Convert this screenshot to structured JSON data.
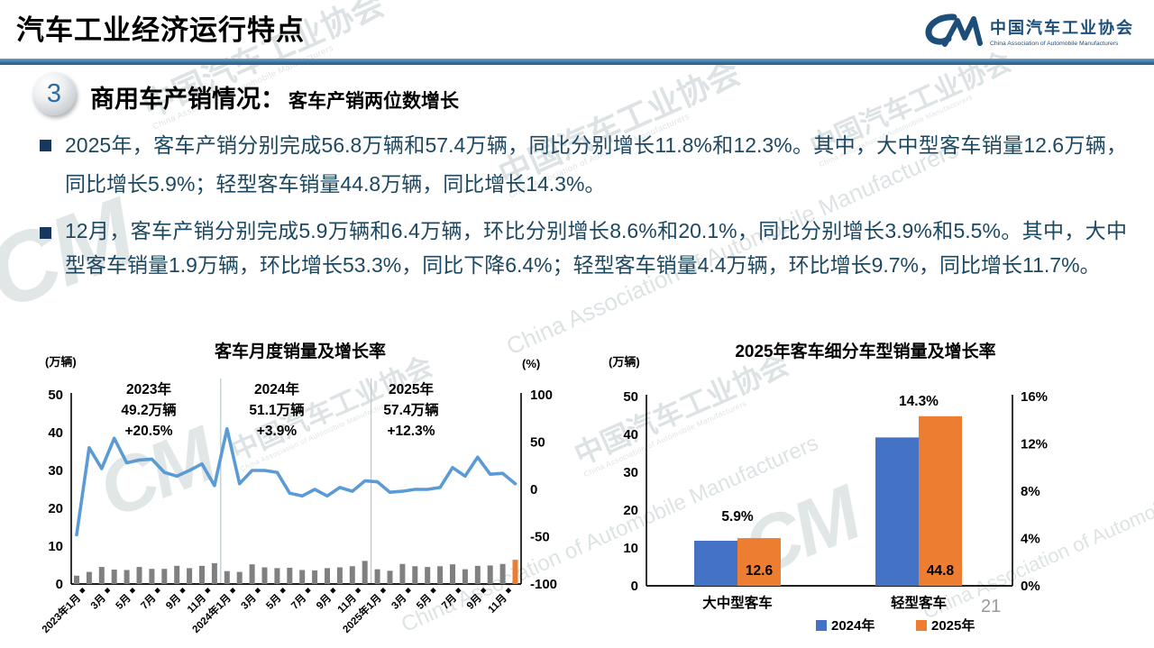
{
  "header": {
    "title": "汽车工业经济运行特点"
  },
  "logo": {
    "name_cn": "中国汽车工业协会",
    "name_en": "China Association of Automobile Manufacturers",
    "mark": "CM"
  },
  "section": {
    "number": "3",
    "title": "商用车产销情况：",
    "subtitle": "客车产销两位数增长"
  },
  "bullets": [
    "2025年，客车产销分别完成56.8万辆和57.4万辆，同比分别增长11.8%和12.3%。其中，大中型客车销量12.6万辆，同比增长5.9%；轻型客车销量44.8万辆，同比增长14.3%。",
    "12月，客车产销分别完成5.9万辆和6.4万辆，环比分别增长8.6%和20.1%，同比分别增长3.9%和5.5%。其中，大中型客车销量1.9万辆，环比增长53.3%，同比下降6.4%；轻型客车销量4.4万辆，环比增长9.7%，同比增长11.7%。"
  ],
  "watermark": {
    "text_cn": "中国汽车工业协会",
    "text_en": "China Association of Automobile Manufacturers",
    "mark": "CM"
  },
  "page": {
    "number": "21"
  },
  "chart_data": [
    {
      "type": "bar+line",
      "title": "客车月度销量及增长率",
      "left_axis_label": "(万辆)",
      "right_axis_label": "(%)",
      "left_axis_ticks": [
        0,
        10,
        20,
        30,
        40,
        50
      ],
      "left_axis_range": [
        0,
        50
      ],
      "right_axis_ticks": [
        -100,
        -50,
        0,
        50,
        100
      ],
      "right_axis_range": [
        -100,
        100
      ],
      "x_tick_labels": [
        "2023年1月",
        "3月",
        "5月",
        "7月",
        "9月",
        "11月",
        "2024年1月",
        "3月",
        "5月",
        "7月",
        "9月",
        "11月",
        "2025年1月",
        "3月",
        "5月",
        "7月",
        "9月",
        "11月"
      ],
      "series": [
        {
          "name": "月度销量",
          "type": "bar",
          "unit": "万辆",
          "axis": "left",
          "values": [
            2.2,
            3.2,
            4.5,
            3.8,
            3.7,
            4.5,
            4.0,
            4.0,
            4.8,
            4.2,
            4.8,
            5.5,
            3.4,
            3.2,
            5.2,
            4.4,
            4.2,
            4.3,
            3.7,
            3.6,
            4.2,
            4.4,
            4.7,
            6.1,
            3.9,
            3.5,
            5.3,
            4.7,
            4.5,
            4.7,
            5.2,
            3.9,
            4.8,
            4.9,
            5.3,
            6.4
          ]
        },
        {
          "name": "增长率",
          "type": "line",
          "unit": "%",
          "axis": "right",
          "values": [
            -48,
            44,
            22,
            54,
            28,
            31,
            32,
            18,
            14,
            20,
            27,
            4,
            64,
            6,
            20,
            20,
            18,
            -4,
            -7,
            0,
            -7,
            2,
            -2,
            9,
            8,
            -3,
            -2,
            0,
            0,
            2,
            23,
            14,
            34,
            16,
            17,
            6
          ]
        }
      ],
      "highlight_last_bar": true,
      "colors": {
        "bar": "#808080",
        "bar_highlight": "#ED7D31",
        "line": "#5B9BD5"
      },
      "year_annotations": [
        {
          "year": "2023年",
          "total": "49.2万辆",
          "growth": "+20.5%"
        },
        {
          "year": "2024年",
          "total": "51.1万辆",
          "growth": "+3.9%"
        },
        {
          "year": "2025年",
          "total": "57.4万辆",
          "growth": "+12.3%"
        }
      ],
      "year_divider_month_indexes": [
        12,
        24
      ]
    },
    {
      "type": "grouped-bar",
      "title": "2025年客车细分车型销量及增长率",
      "left_axis_label": "(万辆)",
      "left_axis_ticks": [
        0,
        10,
        20,
        30,
        40,
        50
      ],
      "left_axis_range": [
        0,
        50
      ],
      "right_axis_ticks": [
        "0%",
        "4%",
        "8%",
        "12%",
        "16%"
      ],
      "categories": [
        "大中型客车",
        "轻型客车"
      ],
      "series": [
        {
          "name": "2024年",
          "color": "#4472C4",
          "values": [
            11.9,
            39.2
          ]
        },
        {
          "name": "2025年",
          "color": "#ED7D31",
          "values": [
            12.6,
            44.8
          ]
        }
      ],
      "value_labels": [
        "12.6",
        "44.8"
      ],
      "growth_labels": [
        "5.9%",
        "14.3%"
      ],
      "legend": [
        "2024年",
        "2025年"
      ]
    }
  ]
}
